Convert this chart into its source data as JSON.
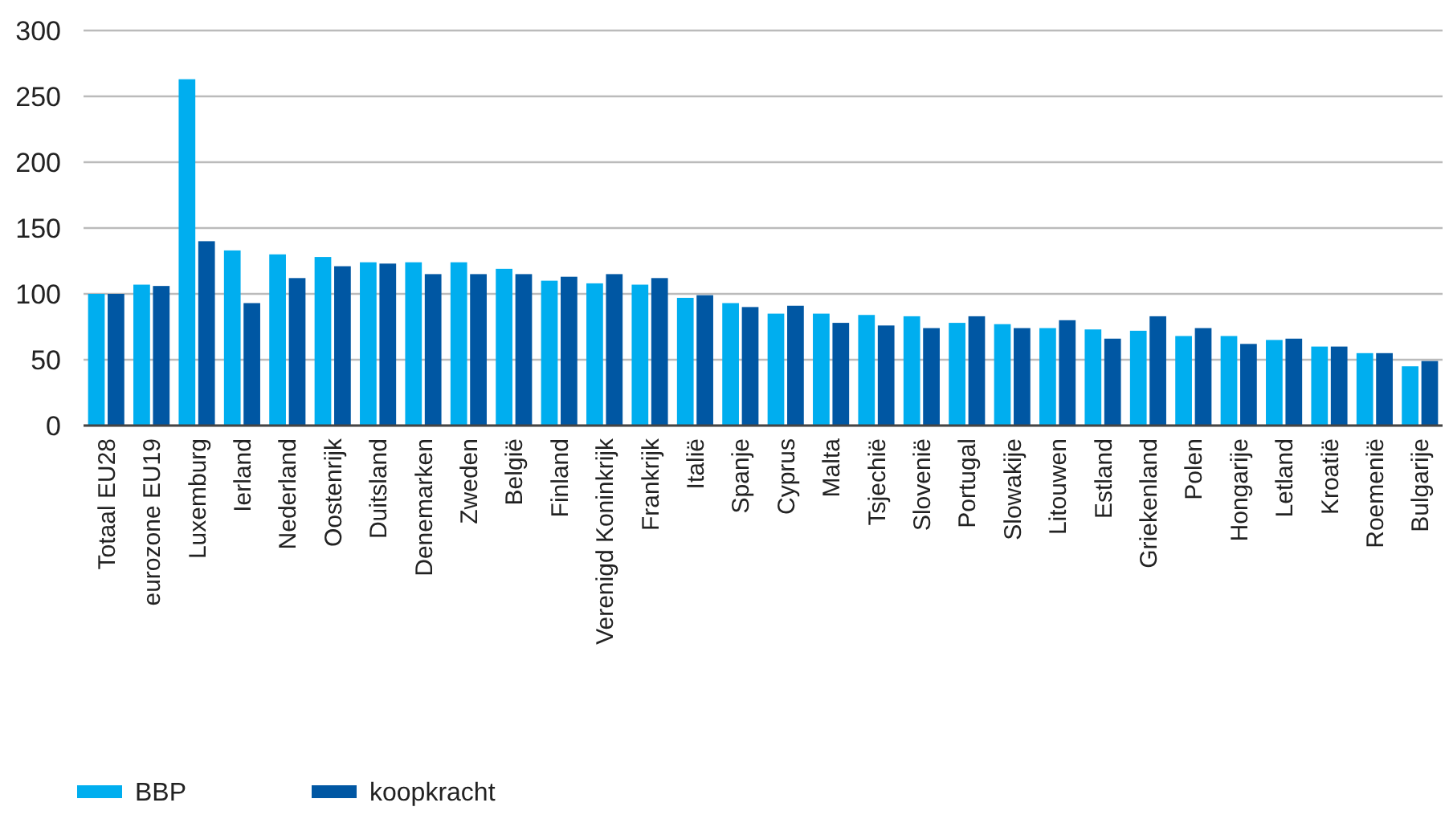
{
  "chart_data": {
    "type": "bar",
    "categories": [
      "Totaal EU28",
      "eurozone EU19",
      "Luxemburg",
      "Ierland",
      "Nederland",
      "Oostenrijk",
      "Duitsland",
      "Denemarken",
      "Zweden",
      "België",
      "Finland",
      "Verenigd Koninkrijk",
      "Frankrijk",
      "Italië",
      "Spanje",
      "Cyprus",
      "Malta",
      "Tsjechië",
      "Slovenië",
      "Portugal",
      "Slowakije",
      "Litouwen",
      "Estland",
      "Griekenland",
      "Polen",
      "Hongarije",
      "Letland",
      "Kroatië",
      "Roemenië",
      "Bulgarije"
    ],
    "series": [
      {
        "name": "BBP",
        "color": "#00aeef",
        "values": [
          100,
          107,
          263,
          133,
          130,
          128,
          124,
          124,
          124,
          119,
          110,
          108,
          107,
          97,
          93,
          85,
          85,
          84,
          83,
          78,
          77,
          74,
          73,
          72,
          68,
          68,
          65,
          60,
          55,
          45
        ]
      },
      {
        "name": "koopkracht",
        "color": "#0057a3",
        "values": [
          100,
          106,
          140,
          93,
          112,
          121,
          123,
          115,
          115,
          115,
          113,
          115,
          112,
          99,
          90,
          91,
          78,
          76,
          74,
          83,
          74,
          80,
          66,
          83,
          74,
          62,
          66,
          60,
          55,
          49
        ]
      }
    ],
    "ylim": [
      0,
      300
    ],
    "yticks": [
      0,
      50,
      100,
      150,
      200,
      250,
      300
    ],
    "grid": "y",
    "legend": "bottom left"
  }
}
